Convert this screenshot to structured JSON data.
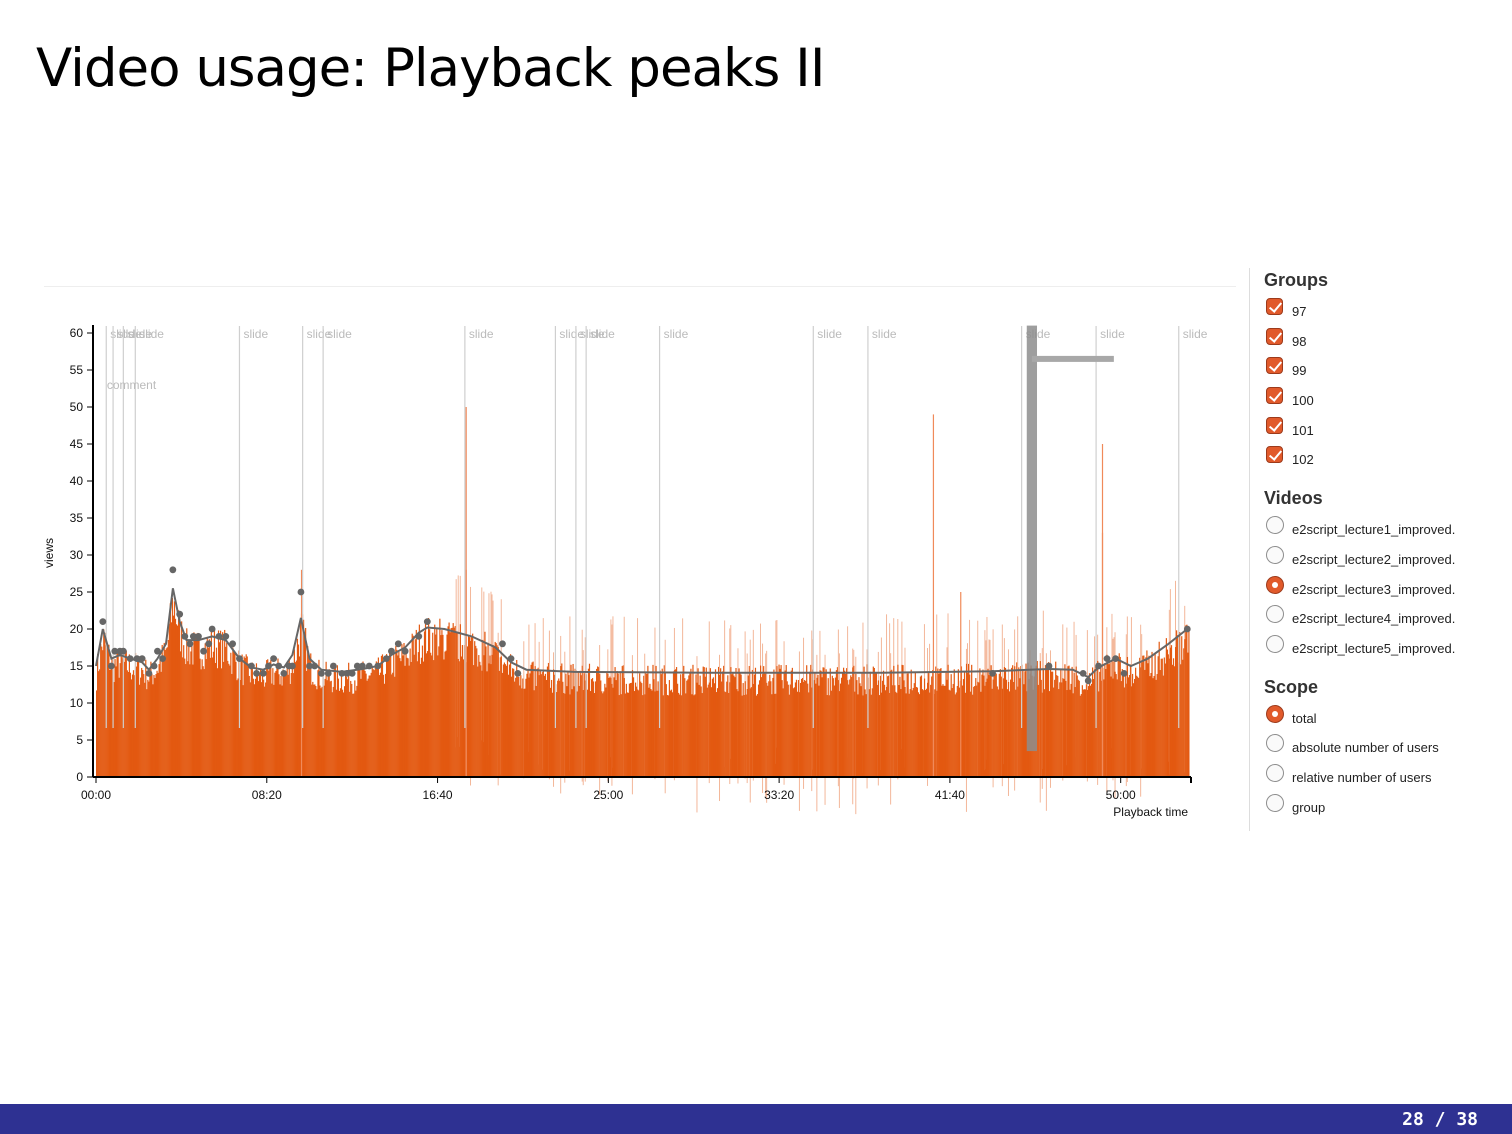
{
  "slide": {
    "title": "Video usage: Playback peaks II"
  },
  "footer": {
    "page": "28 / 38"
  },
  "panel": {
    "groups_heading": "Groups",
    "groups": [
      {
        "label": "97",
        "checked": true
      },
      {
        "label": "98",
        "checked": true
      },
      {
        "label": "99",
        "checked": true
      },
      {
        "label": "100",
        "checked": true
      },
      {
        "label": "101",
        "checked": true
      },
      {
        "label": "102",
        "checked": true
      }
    ],
    "videos_heading": "Videos",
    "videos": [
      {
        "label": "e2script_lecture1_improved.",
        "selected": false
      },
      {
        "label": "e2script_lecture2_improved.",
        "selected": false
      },
      {
        "label": "e2script_lecture3_improved.",
        "selected": true
      },
      {
        "label": "e2script_lecture4_improved.",
        "selected": false
      },
      {
        "label": "e2script_lecture5_improved.",
        "selected": false
      }
    ],
    "scope_heading": "Scope",
    "scope": [
      {
        "label": "total",
        "selected": true
      },
      {
        "label": "absolute number of users",
        "selected": false
      },
      {
        "label": "relative number of users",
        "selected": false
      },
      {
        "label": "group",
        "selected": false
      }
    ]
  },
  "chart_data": {
    "type": "bar",
    "xlabel": "Playback time",
    "ylabel": "views",
    "xlim": [
      0,
      3200
    ],
    "ylim": [
      0,
      60
    ],
    "y_ticks": [
      "0",
      "5",
      "10",
      "15",
      "20",
      "25",
      "30",
      "35",
      "40",
      "45",
      "50",
      "55",
      "60"
    ],
    "x_ticks": [
      {
        "value": 0,
        "label": "00:00"
      },
      {
        "value": 500,
        "label": "08:20"
      },
      {
        "value": 1000,
        "label": "16:40"
      },
      {
        "value": 1500,
        "label": "25:00"
      },
      {
        "value": 2000,
        "label": "33:20"
      },
      {
        "value": 2500,
        "label": "41:40"
      },
      {
        "value": 3000,
        "label": "50:00"
      }
    ],
    "bar_color": "#e35911",
    "smooth_line_color": "#666666",
    "slide_markers": [
      {
        "t": 30,
        "label": "slide"
      },
      {
        "t": 50,
        "label": "slide"
      },
      {
        "t": 80,
        "label": "slide"
      },
      {
        "t": 115,
        "label": "slide"
      },
      {
        "t": 420,
        "label": "slide"
      },
      {
        "t": 605,
        "label": "slide"
      },
      {
        "t": 665,
        "label": "slide"
      },
      {
        "t": 1080,
        "label": "slide"
      },
      {
        "t": 1345,
        "label": "slide"
      },
      {
        "t": 1405,
        "label": "slide"
      },
      {
        "t": 1435,
        "label": "slide"
      },
      {
        "t": 1650,
        "label": "slide"
      },
      {
        "t": 2100,
        "label": "slide"
      },
      {
        "t": 2260,
        "label": "slide"
      },
      {
        "t": 2710,
        "label": "slide"
      },
      {
        "t": 2928,
        "label": "slide"
      },
      {
        "t": 3170,
        "label": "slide"
      }
    ],
    "comment_markers": [
      {
        "t": 20,
        "label": "comment"
      }
    ],
    "highlight_range": {
      "t_start": 2725,
      "t_end": 2755,
      "y_top": 61,
      "y_bottom": 3.5
    },
    "stacked_comment_bar": {
      "t_start": 2740,
      "t_end": 2980,
      "y": 56.5
    },
    "peak_points": [
      [
        20,
        21
      ],
      [
        45,
        15
      ],
      [
        55,
        17
      ],
      [
        70,
        17
      ],
      [
        80,
        17
      ],
      [
        100,
        16
      ],
      [
        120,
        16
      ],
      [
        135,
        16
      ],
      [
        155,
        14
      ],
      [
        170,
        15
      ],
      [
        180,
        17
      ],
      [
        195,
        16
      ],
      [
        225,
        28
      ],
      [
        245,
        22
      ],
      [
        260,
        19
      ],
      [
        275,
        18
      ],
      [
        285,
        19
      ],
      [
        300,
        19
      ],
      [
        315,
        17
      ],
      [
        330,
        18
      ],
      [
        340,
        20
      ],
      [
        360,
        19
      ],
      [
        380,
        19
      ],
      [
        400,
        18
      ],
      [
        420,
        16
      ],
      [
        455,
        15
      ],
      [
        470,
        14
      ],
      [
        490,
        14
      ],
      [
        505,
        15
      ],
      [
        520,
        16
      ],
      [
        535,
        15
      ],
      [
        550,
        14
      ],
      [
        565,
        15
      ],
      [
        575,
        15
      ],
      [
        600,
        25
      ],
      [
        625,
        15
      ],
      [
        640,
        15
      ],
      [
        660,
        14
      ],
      [
        680,
        14
      ],
      [
        695,
        15
      ],
      [
        720,
        14
      ],
      [
        735,
        14
      ],
      [
        750,
        14
      ],
      [
        765,
        15
      ],
      [
        780,
        15
      ],
      [
        800,
        15
      ],
      [
        825,
        15
      ],
      [
        850,
        16
      ],
      [
        865,
        17
      ],
      [
        885,
        18
      ],
      [
        905,
        17
      ],
      [
        945,
        19
      ],
      [
        970,
        21
      ],
      [
        1190,
        18
      ],
      [
        1215,
        16
      ],
      [
        1235,
        14
      ],
      [
        2625,
        14
      ],
      [
        2790,
        15
      ],
      [
        2890,
        14
      ],
      [
        2905,
        13
      ],
      [
        2935,
        15
      ],
      [
        2960,
        16
      ],
      [
        2985,
        16
      ],
      [
        3010,
        14
      ],
      [
        3195,
        20
      ]
    ],
    "smooth_line": [
      [
        0,
        15
      ],
      [
        20,
        20
      ],
      [
        45,
        16
      ],
      [
        70,
        16.5
      ],
      [
        100,
        16
      ],
      [
        135,
        15.5
      ],
      [
        155,
        14.5
      ],
      [
        180,
        16
      ],
      [
        205,
        18
      ],
      [
        225,
        25.5
      ],
      [
        245,
        21
      ],
      [
        265,
        18.5
      ],
      [
        300,
        18.5
      ],
      [
        340,
        19
      ],
      [
        380,
        18.5
      ],
      [
        420,
        16
      ],
      [
        455,
        14.8
      ],
      [
        490,
        14.5
      ],
      [
        520,
        15.2
      ],
      [
        550,
        14.8
      ],
      [
        575,
        16.5
      ],
      [
        600,
        21.5
      ],
      [
        625,
        16
      ],
      [
        660,
        14.5
      ],
      [
        720,
        14.2
      ],
      [
        780,
        14.6
      ],
      [
        825,
        15
      ],
      [
        865,
        16.5
      ],
      [
        905,
        17.5
      ],
      [
        945,
        19.5
      ],
      [
        970,
        20.2
      ],
      [
        1020,
        20
      ],
      [
        1100,
        19
      ],
      [
        1170,
        17.5
      ],
      [
        1215,
        15.5
      ],
      [
        1260,
        14.5
      ],
      [
        1400,
        14.2
      ],
      [
        1800,
        14.1
      ],
      [
        2300,
        14.1
      ],
      [
        2625,
        14.3
      ],
      [
        2790,
        14.6
      ],
      [
        2860,
        14.5
      ],
      [
        2905,
        13.5
      ],
      [
        2935,
        14.8
      ],
      [
        2985,
        16
      ],
      [
        3030,
        15
      ],
      [
        3080,
        16
      ],
      [
        3140,
        18
      ],
      [
        3195,
        20
      ]
    ]
  }
}
